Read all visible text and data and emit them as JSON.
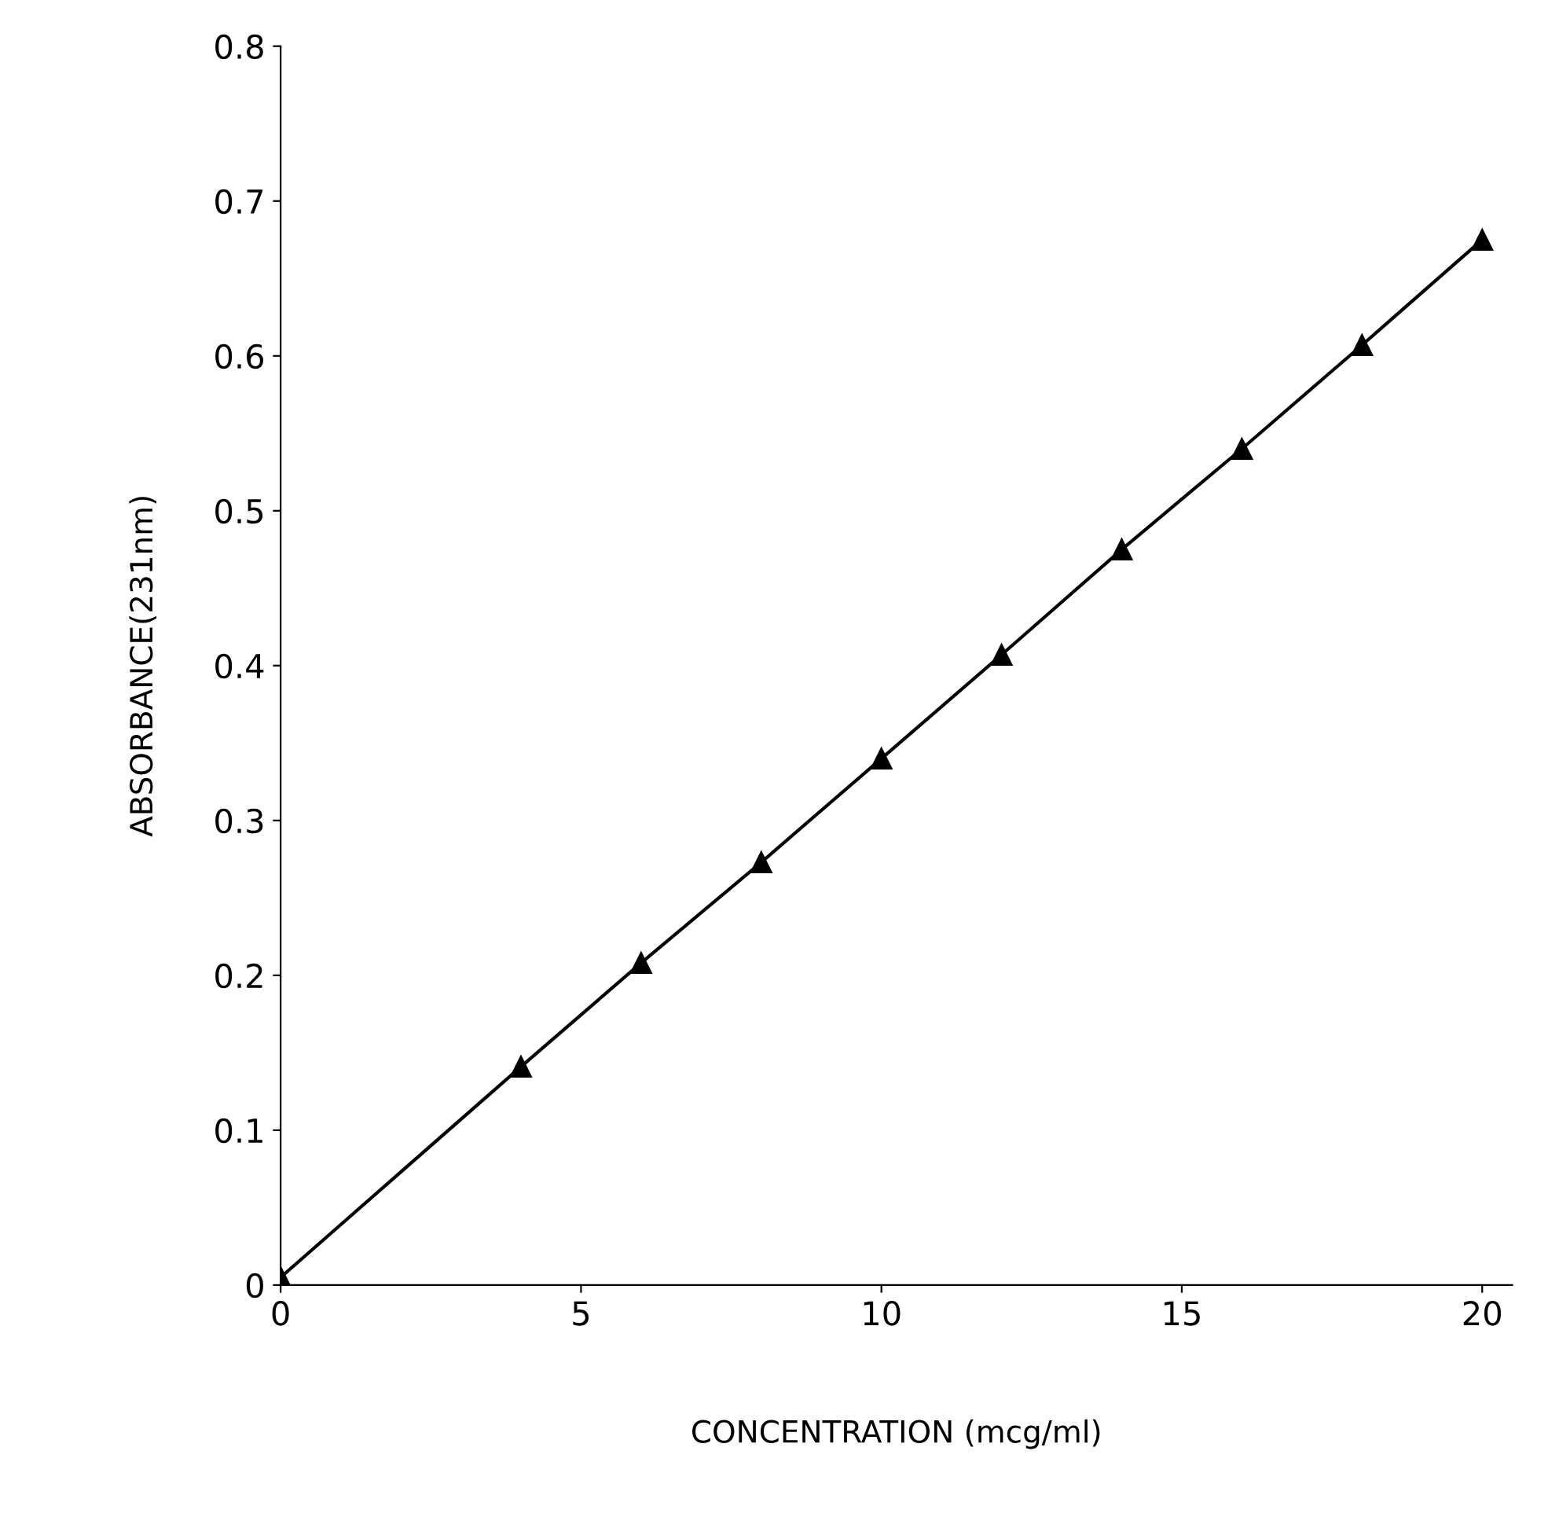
{
  "chart_data": {
    "type": "line",
    "xlabel": "CONCENTRATION (mcg/ml)",
    "ylabel": "ABSORBANCE(231nm)",
    "x": [
      0,
      4,
      6,
      8,
      10,
      12,
      14,
      16,
      18,
      20
    ],
    "series": [
      {
        "color": "#000000",
        "values": [
          0.005,
          0.141,
          0.208,
          0.273,
          0.34,
          0.407,
          0.475,
          0.54,
          0.607,
          0.675
        ]
      }
    ],
    "xlim": [
      0,
      20.5
    ],
    "ylim": [
      0,
      0.8
    ],
    "xticks": [
      0,
      5,
      10,
      15,
      20
    ],
    "yticks": [
      0,
      0.1,
      0.2,
      0.3,
      0.4,
      0.5,
      0.6,
      0.7,
      0.8
    ],
    "marker": "triangle",
    "line_style": "solid",
    "grid": false,
    "legend": false
  }
}
